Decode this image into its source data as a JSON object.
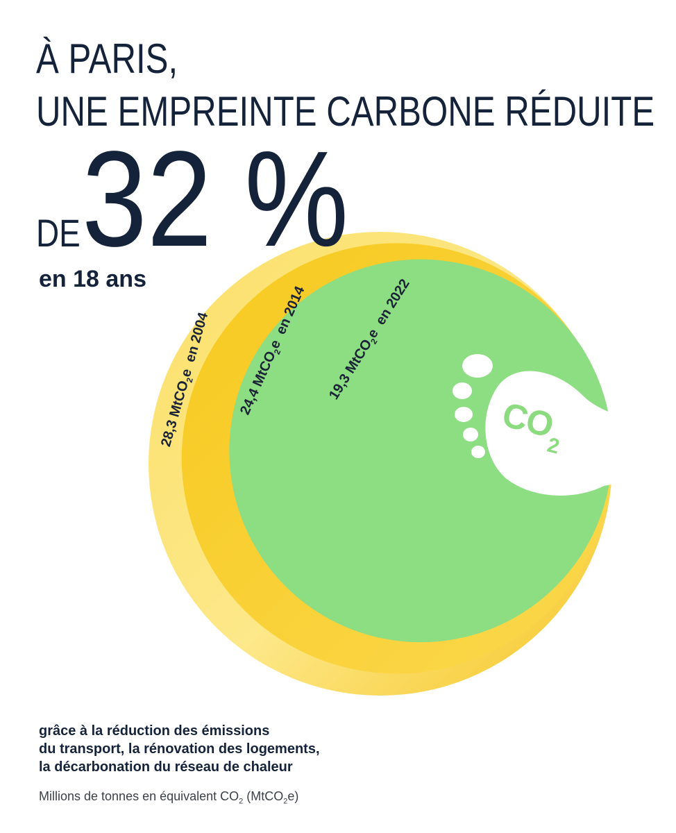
{
  "title": {
    "line1": "À PARIS,",
    "line2": "UNE EMPREINTE CARBONE RÉDUITE",
    "prefix": "DE",
    "big_value": "32 %",
    "subtitle": "en 18 ans"
  },
  "chart_data": {
    "type": "area",
    "title": "À Paris, une empreinte carbone réduite de 32 % en 18 ans",
    "unit": "MtCO2e",
    "categories": [
      "2004",
      "2014",
      "2022"
    ],
    "values": [
      28.3,
      24.4,
      19.3
    ],
    "labels": [
      {
        "value": "28,3 MtCO",
        "sub": "2",
        "suffix": "e  en 2004"
      },
      {
        "value": "24,4 MtCO",
        "sub": "2",
        "suffix": "e  en 2014"
      },
      {
        "value": "19,3 MtCO",
        "sub": "2",
        "suffix": "e  en 2022"
      }
    ],
    "colors": [
      "#f9db4d",
      "#f5c21b",
      "#8ddd82"
    ],
    "reduction_percent": 32,
    "period_years": 18
  },
  "icon": {
    "name": "footprint-icon",
    "text": "CO",
    "sub": "2"
  },
  "footnote": {
    "line1": "grâce à la réduction des émissions",
    "line2": "du transport, la rénovation des logements,",
    "line3": "la décarbonation du réseau de chaleur"
  },
  "unit_note": {
    "pre": "Millions de tonnes en équivalent CO",
    "sub": "2",
    "mid": " (MtCO",
    "sub2": "2",
    "post": "e)"
  }
}
